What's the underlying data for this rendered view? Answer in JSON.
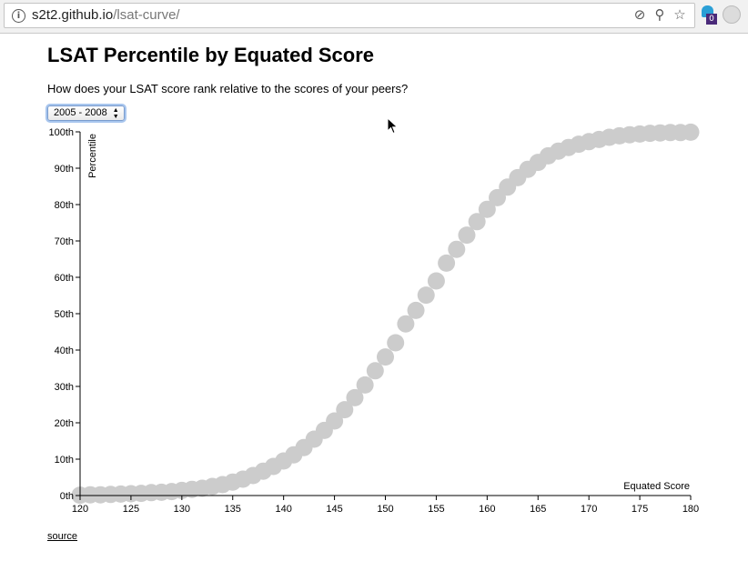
{
  "browser": {
    "url_host": "s2t2.github.io",
    "url_path": "/lsat-curve/",
    "icons": [
      "info-icon",
      "blocked-content-icon",
      "zoom-icon",
      "bookmark-star-icon"
    ],
    "extension_badge": "0"
  },
  "page": {
    "title": "LSAT Percentile by Equated Score",
    "subtitle": "How does your LSAT score rank relative to the scores of your peers?",
    "select": {
      "selected": "2005 - 2008"
    },
    "source_link": "source"
  },
  "colors": {
    "point": "#cccccc",
    "axis": "#000000",
    "select_focus": "#a8c6ee"
  },
  "chart_data": {
    "type": "scatter",
    "title": "LSAT Percentile by Equated Score",
    "xlabel": "Equated Score",
    "ylabel": "Percentile",
    "xlim": [
      120,
      180
    ],
    "ylim": [
      0,
      100
    ],
    "x_ticks": [
      120,
      125,
      130,
      135,
      140,
      145,
      150,
      155,
      160,
      165,
      170,
      175,
      180
    ],
    "y_ticks": [
      0,
      10,
      20,
      30,
      40,
      50,
      60,
      70,
      80,
      90,
      100
    ],
    "y_tick_suffix": "th",
    "grid": false,
    "point_color": "#cccccc",
    "x": [
      120,
      121,
      122,
      123,
      124,
      125,
      126,
      127,
      128,
      129,
      130,
      131,
      132,
      133,
      134,
      135,
      136,
      137,
      138,
      139,
      140,
      141,
      142,
      143,
      144,
      145,
      146,
      147,
      148,
      149,
      150,
      151,
      152,
      153,
      154,
      155,
      156,
      157,
      158,
      159,
      160,
      161,
      162,
      163,
      164,
      165,
      166,
      167,
      168,
      169,
      170,
      171,
      172,
      173,
      174,
      175,
      176,
      177,
      178,
      179,
      180
    ],
    "y": [
      0.1,
      0.2,
      0.2,
      0.3,
      0.4,
      0.5,
      0.6,
      0.8,
      0.9,
      1.1,
      1.4,
      1.7,
      2.0,
      2.5,
      3.0,
      3.7,
      4.5,
      5.5,
      6.7,
      8.0,
      9.5,
      11.2,
      13.2,
      15.5,
      17.9,
      20.5,
      23.6,
      26.9,
      30.4,
      34.3,
      38.1,
      42.0,
      47.2,
      50.9,
      55.1,
      59.0,
      63.9,
      67.7,
      71.6,
      75.3,
      78.7,
      81.9,
      84.8,
      87.4,
      89.7,
      91.6,
      93.4,
      94.7,
      95.7,
      96.6,
      97.3,
      97.9,
      98.5,
      98.9,
      99.2,
      99.4,
      99.6,
      99.7,
      99.8,
      99.8,
      99.9
    ]
  }
}
